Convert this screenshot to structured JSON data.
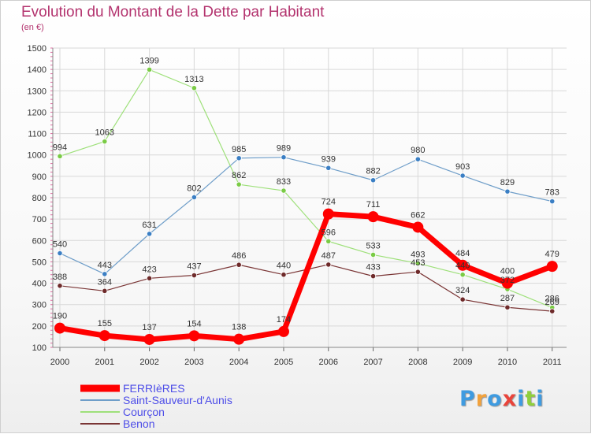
{
  "title": "Evolution du Montant de la Dette par Habitant",
  "subtitle": "(en €)",
  "logo": {
    "text": "Proxiti",
    "colors": [
      "#3f9be0",
      "#f2a23c",
      "#3f9be0",
      "#e9443b",
      "#3f9be0",
      "#8fcf3c",
      "#3f9be0"
    ]
  },
  "chart_data": {
    "type": "line",
    "title": "Evolution du Montant de la Dette par Habitant",
    "ylabel": "(en €)",
    "x": [
      "2000",
      "2001",
      "2002",
      "2003",
      "2004",
      "2005",
      "2006",
      "2007",
      "2008",
      "2009",
      "2010",
      "2011"
    ],
    "ylim": [
      100,
      1500
    ],
    "yticks": [
      100,
      200,
      300,
      400,
      500,
      600,
      700,
      800,
      900,
      1000,
      1100,
      1200,
      1300,
      1400,
      1500
    ],
    "grid": true,
    "legend": "bottom-left",
    "series": [
      {
        "name": "Saint-Sauveur-d'Aunis",
        "color": "#6f9ec9",
        "marker": "#3b7fc4",
        "width": 1.2,
        "values": [
          540,
          443,
          631,
          802,
          985,
          989,
          939,
          882,
          980,
          903,
          829,
          783
        ]
      },
      {
        "name": "Courçon",
        "color": "#9ee07a",
        "marker": "#7acb45",
        "width": 1.2,
        "values": [
          994,
          1063,
          1399,
          1313,
          862,
          833,
          596,
          533,
          493,
          440,
          372,
          286
        ]
      },
      {
        "name": "Benon",
        "color": "#7a3535",
        "marker": "#6e2a2a",
        "width": 1.2,
        "values": [
          388,
          364,
          423,
          437,
          486,
          440,
          487,
          433,
          453,
          324,
          287,
          269
        ]
      },
      {
        "name": "FERRIèRES",
        "color": "#ff0000",
        "marker": "#ff0000",
        "width": 7,
        "values": [
          190,
          155,
          137,
          154,
          138,
          174,
          724,
          711,
          662,
          484,
          400,
          479
        ]
      }
    ],
    "legend_order": [
      "FERRIèRES",
      "Saint-Sauveur-d'Aunis",
      "Courçon",
      "Benon"
    ]
  }
}
